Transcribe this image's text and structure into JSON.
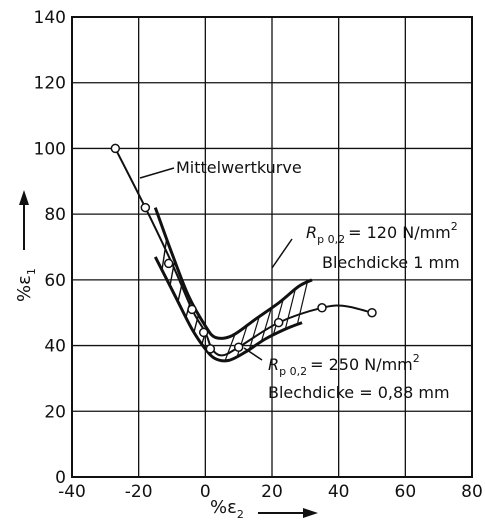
{
  "chart_data": {
    "type": "line",
    "xlabel": "%ε",
    "xlabel_sub": "2",
    "ylabel": "%ε",
    "ylabel_sub": "1",
    "xlim": [
      -40,
      80
    ],
    "ylim": [
      0,
      140
    ],
    "xticks": [
      "-40",
      "-20",
      "0",
      "20",
      "40",
      "60",
      "80"
    ],
    "yticks": [
      "0",
      "20",
      "40",
      "60",
      "80",
      "100",
      "120",
      "140"
    ],
    "grid": true,
    "mean_curve": {
      "name": "Mittelwertkurve",
      "points": [
        [
          -27,
          100
        ],
        [
          -18,
          82
        ],
        [
          -10,
          65
        ],
        [
          -4,
          51
        ],
        [
          0,
          44
        ],
        [
          2,
          39
        ],
        [
          5,
          37
        ],
        [
          10,
          39.5
        ],
        [
          22,
          47
        ],
        [
          35,
          51.5
        ],
        [
          42,
          52
        ],
        [
          50,
          50
        ]
      ],
      "markers": [
        [
          -27,
          100
        ],
        [
          -18,
          82
        ],
        [
          -11,
          65
        ],
        [
          -4,
          51
        ],
        [
          -0.5,
          44
        ],
        [
          1.5,
          39
        ],
        [
          10,
          39.5
        ],
        [
          22,
          47
        ],
        [
          35,
          51.5
        ],
        [
          50,
          50
        ]
      ]
    },
    "curve_upper": {
      "points": [
        [
          -15,
          82
        ],
        [
          -10,
          68
        ],
        [
          -5,
          55
        ],
        [
          0,
          46
        ],
        [
          3,
          42.5
        ],
        [
          8,
          43
        ],
        [
          15,
          48
        ],
        [
          22,
          53
        ],
        [
          28,
          58
        ],
        [
          32,
          60
        ]
      ]
    },
    "curve_lower": {
      "points": [
        [
          -15,
          67
        ],
        [
          -9,
          55
        ],
        [
          -4,
          45
        ],
        [
          0,
          39
        ],
        [
          3,
          36
        ],
        [
          7,
          35.5
        ],
        [
          12,
          38
        ],
        [
          18,
          42
        ],
        [
          24,
          45
        ],
        [
          29,
          47
        ]
      ]
    },
    "annotations": {
      "mean": "Mittelwertkurve",
      "upper_rp_main": "R",
      "upper_rp_sub": "p 0,2",
      "upper_rp_val": "= 120 N/mm",
      "upper_rp_sup": "2",
      "upper_thickness": "Blechdicke 1 mm",
      "lower_rp_main": "R",
      "lower_rp_sub": "p 0,2",
      "lower_rp_val": "= 250 N/mm",
      "lower_rp_sup": "2",
      "lower_thickness": "Blechdicke = 0,88 mm"
    }
  }
}
